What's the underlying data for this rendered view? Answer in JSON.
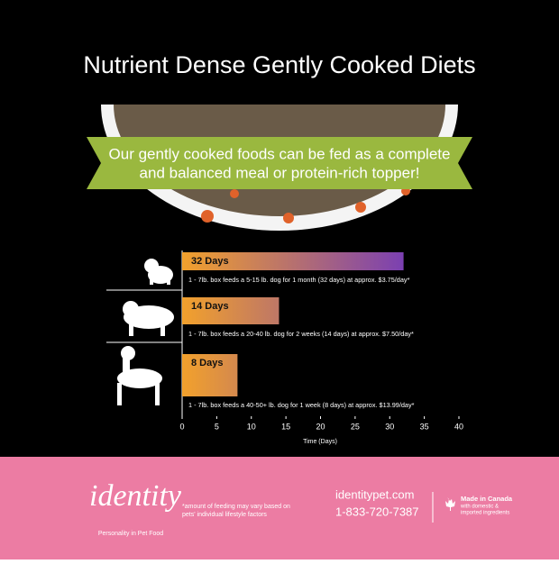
{
  "chart_data": {
    "type": "bar",
    "title": "Nutrient Dense Gently Cooked Diets",
    "subtitle": [
      "Our gently cooked foods can be fed as a complete",
      "and balanced meal or protein-rich topper!"
    ],
    "categories": [
      null,
      null,
      null
    ],
    "values": [
      32,
      14,
      8
    ],
    "value_labels": [
      "32 Days",
      "14 Days",
      "8 Days"
    ],
    "descriptions": [
      "1 - 7lb. box feeds a 5-15 lb. dog for 1 month (32 days) at approx. $3.75/day*",
      "1 - 7lb. box feeds a 20-40 lb. dog for 2 weeks (14 days) at approx. $7.50/day*",
      "1 - 7lb. box feeds a 40-50+ lb. dog for 1 week (8 days) at approx. $13.99/day*"
    ],
    "colors": [
      "#f2a12c",
      "#7a3fb3"
    ],
    "xlim": [
      0,
      40
    ],
    "xticks": [
      0,
      5,
      10,
      15,
      20,
      25,
      30,
      35,
      40
    ],
    "x_label": "Time (Days)"
  },
  "footer": {
    "logo": "identity",
    "tagline": "Personality in Pet Food",
    "note": [
      "*amount of feeding may vary based on",
      "pets' individual lifestyle factors"
    ],
    "website": "identitypet.com",
    "phone": "1-833-720-7387",
    "origin": "Made in Canada",
    "origin_note": [
      "with domestic &",
      "imported ingredients"
    ]
  }
}
